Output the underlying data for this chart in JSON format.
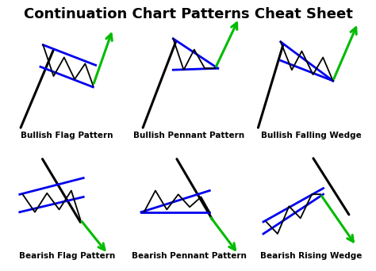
{
  "title": "Continuation Chart Patterns Cheat Sheet",
  "title_fontsize": 13,
  "label_fontsize": 7.5,
  "bg_color": "#ffffff",
  "black": "#000000",
  "blue": "#0000ee",
  "green": "#00bb00",
  "patterns": [
    {
      "name": "Bullish Flag Pattern"
    },
    {
      "name": "Bullish Pennant Pattern"
    },
    {
      "name": "Bullish Falling Wedge"
    },
    {
      "name": "Bearish Flag Pattern"
    },
    {
      "name": "Bearish Pennant Pattern"
    },
    {
      "name": "Bearish Rising Wedge"
    }
  ]
}
